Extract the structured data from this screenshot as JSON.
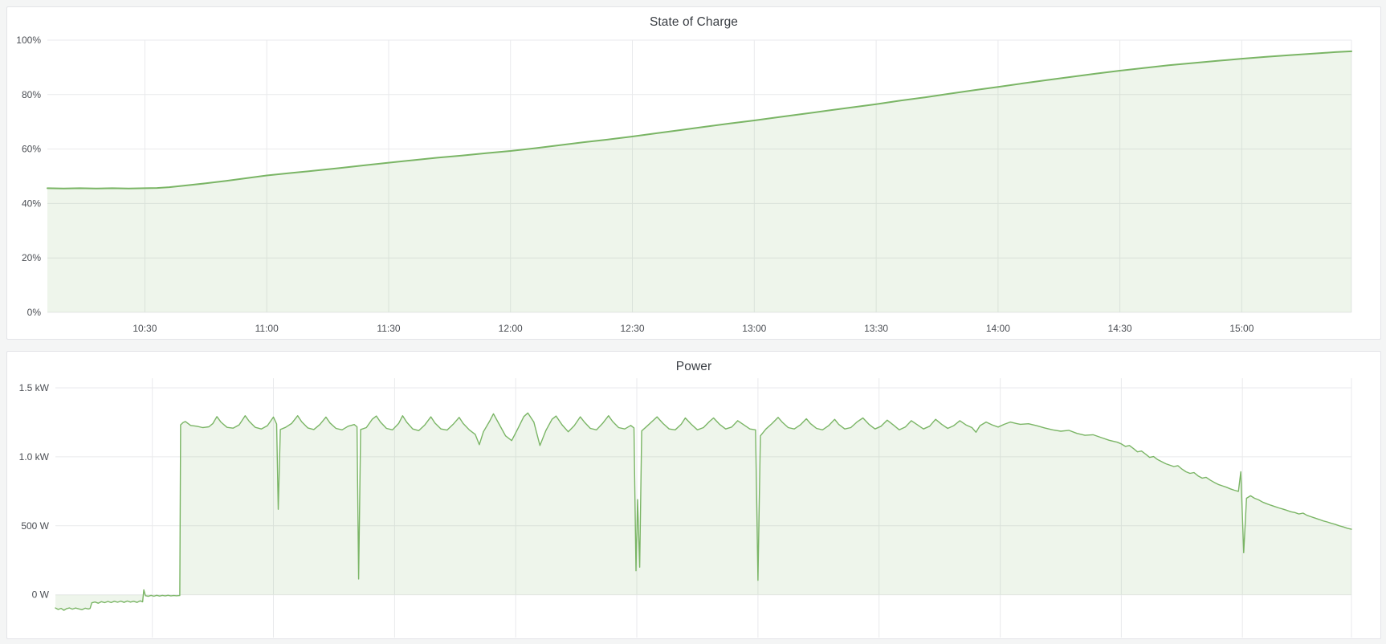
{
  "page": {
    "background": "#f4f5f5",
    "panel_background": "#ffffff",
    "panel_border": "#e3e4e8",
    "grid_color": "#e9eaec",
    "tick_text_color": "#4b4e54",
    "title_text_color": "#3a3e44"
  },
  "chart_data": [
    {
      "type": "area",
      "name": "state-of-charge",
      "title": "State of Charge",
      "unit": "percent",
      "grid": true,
      "legend": "none",
      "line_color": "#7ab565",
      "fill_color": "rgba(122,181,101,0.13)",
      "line_width": 2,
      "x_domain_minutes_after_10": [
        6,
        327
      ],
      "y_domain": [
        0,
        100
      ],
      "x_ticks": [
        {
          "min": 30,
          "label": "10:30"
        },
        {
          "min": 60,
          "label": "11:00"
        },
        {
          "min": 90,
          "label": "11:30"
        },
        {
          "min": 120,
          "label": "12:00"
        },
        {
          "min": 150,
          "label": "12:30"
        },
        {
          "min": 180,
          "label": "13:00"
        },
        {
          "min": 210,
          "label": "13:30"
        },
        {
          "min": 240,
          "label": "14:00"
        },
        {
          "min": 270,
          "label": "14:30"
        },
        {
          "min": 300,
          "label": "15:00"
        }
      ],
      "y_ticks": [
        {
          "value": 0,
          "label": "0%"
        },
        {
          "value": 20,
          "label": "20%"
        },
        {
          "value": 40,
          "label": "40%"
        },
        {
          "value": 60,
          "label": "60%"
        },
        {
          "value": 80,
          "label": "80%"
        },
        {
          "value": 100,
          "label": "100%"
        }
      ],
      "points": [
        [
          6,
          45.6
        ],
        [
          10,
          45.5
        ],
        [
          14,
          45.6
        ],
        [
          18,
          45.5
        ],
        [
          22,
          45.6
        ],
        [
          26,
          45.5
        ],
        [
          30,
          45.6
        ],
        [
          33,
          45.7
        ],
        [
          36,
          46.0
        ],
        [
          40,
          46.6
        ],
        [
          45,
          47.4
        ],
        [
          50,
          48.3
        ],
        [
          55,
          49.3
        ],
        [
          60,
          50.3
        ],
        [
          66,
          51.2
        ],
        [
          72,
          52.1
        ],
        [
          78,
          53.0
        ],
        [
          84,
          54.0
        ],
        [
          90,
          55.0
        ],
        [
          96,
          55.9
        ],
        [
          102,
          56.8
        ],
        [
          108,
          57.6
        ],
        [
          114,
          58.5
        ],
        [
          120,
          59.3
        ],
        [
          126,
          60.3
        ],
        [
          132,
          61.4
        ],
        [
          138,
          62.5
        ],
        [
          144,
          63.5
        ],
        [
          150,
          64.6
        ],
        [
          156,
          65.8
        ],
        [
          162,
          67.0
        ],
        [
          168,
          68.2
        ],
        [
          174,
          69.4
        ],
        [
          180,
          70.5
        ],
        [
          186,
          71.7
        ],
        [
          192,
          72.9
        ],
        [
          198,
          74.1
        ],
        [
          204,
          75.3
        ],
        [
          210,
          76.5
        ],
        [
          216,
          77.8
        ],
        [
          222,
          79.0
        ],
        [
          228,
          80.3
        ],
        [
          234,
          81.6
        ],
        [
          240,
          82.8
        ],
        [
          246,
          84.1
        ],
        [
          252,
          85.3
        ],
        [
          258,
          86.5
        ],
        [
          264,
          87.7
        ],
        [
          270,
          88.8
        ],
        [
          276,
          89.8
        ],
        [
          282,
          90.8
        ],
        [
          288,
          91.6
        ],
        [
          294,
          92.4
        ],
        [
          300,
          93.2
        ],
        [
          306,
          93.9
        ],
        [
          312,
          94.5
        ],
        [
          318,
          95.1
        ],
        [
          323,
          95.6
        ],
        [
          327,
          95.9
        ]
      ]
    },
    {
      "type": "area",
      "name": "power",
      "title": "Power",
      "unit": "watt",
      "grid": true,
      "legend": "none",
      "line_color": "#7ab565",
      "fill_color": "rgba(122,181,101,0.13)",
      "line_width": 1.4,
      "x_domain_minutes_after_10": [
        6,
        327
      ],
      "y_domain": [
        -310,
        1570
      ],
      "x_ticks": [
        {
          "min": 30
        },
        {
          "min": 60
        },
        {
          "min": 90
        },
        {
          "min": 120
        },
        {
          "min": 150
        },
        {
          "min": 180
        },
        {
          "min": 210
        },
        {
          "min": 240
        },
        {
          "min": 270
        },
        {
          "min": 300
        }
      ],
      "y_ticks": [
        {
          "value": 0,
          "label": "0 W"
        },
        {
          "value": 500,
          "label": "500 W"
        },
        {
          "value": 1000,
          "label": "1.0 kW"
        },
        {
          "value": 1500,
          "label": "1.5 kW"
        }
      ],
      "points": [
        [
          6,
          -95
        ],
        [
          6.7,
          -106
        ],
        [
          7.4,
          -98
        ],
        [
          8.1,
          -112
        ],
        [
          8.8,
          -100
        ],
        [
          9.5,
          -95
        ],
        [
          10.2,
          -104
        ],
        [
          11,
          -96
        ],
        [
          11.8,
          -102
        ],
        [
          12.6,
          -108
        ],
        [
          13.4,
          -97
        ],
        [
          14.2,
          -103
        ],
        [
          14.6,
          -99
        ],
        [
          15,
          -58
        ],
        [
          15.8,
          -52
        ],
        [
          16.6,
          -61
        ],
        [
          17.4,
          -50
        ],
        [
          18.2,
          -57
        ],
        [
          19,
          -48
        ],
        [
          19.8,
          -56
        ],
        [
          20.6,
          -47
        ],
        [
          21.4,
          -54
        ],
        [
          22.2,
          -46
        ],
        [
          23,
          -55
        ],
        [
          23.8,
          -45
        ],
        [
          24.6,
          -53
        ],
        [
          25.4,
          -47
        ],
        [
          26.2,
          -55
        ],
        [
          27,
          -44
        ],
        [
          27.6,
          -51
        ],
        [
          27.9,
          36
        ],
        [
          28.3,
          -6
        ],
        [
          29,
          -11
        ],
        [
          29.7,
          -4
        ],
        [
          30.4,
          -10
        ],
        [
          31.1,
          -3
        ],
        [
          31.8,
          -9
        ],
        [
          32.5,
          -4
        ],
        [
          33.2,
          -8
        ],
        [
          33.9,
          -3
        ],
        [
          34.6,
          -8
        ],
        [
          35.3,
          -5
        ],
        [
          36,
          -7
        ],
        [
          36.8,
          -5
        ],
        [
          37,
          1232
        ],
        [
          37.6,
          1248
        ],
        [
          38.2,
          1256
        ],
        [
          39.5,
          1228
        ],
        [
          41,
          1222
        ],
        [
          42.5,
          1212
        ],
        [
          44,
          1218
        ],
        [
          45,
          1242
        ],
        [
          46,
          1292
        ],
        [
          47,
          1252
        ],
        [
          48.5,
          1214
        ],
        [
          50,
          1208
        ],
        [
          51.5,
          1232
        ],
        [
          53,
          1298
        ],
        [
          54,
          1258
        ],
        [
          55.5,
          1214
        ],
        [
          57,
          1202
        ],
        [
          58.5,
          1226
        ],
        [
          60,
          1288
        ],
        [
          60.8,
          1238
        ],
        [
          61.2,
          620
        ],
        [
          61.7,
          1198
        ],
        [
          63,
          1214
        ],
        [
          64.5,
          1242
        ],
        [
          66,
          1298
        ],
        [
          67,
          1254
        ],
        [
          68.5,
          1210
        ],
        [
          70,
          1198
        ],
        [
          71.5,
          1234
        ],
        [
          73,
          1288
        ],
        [
          74,
          1246
        ],
        [
          75.5,
          1206
        ],
        [
          77,
          1196
        ],
        [
          78.5,
          1222
        ],
        [
          80,
          1234
        ],
        [
          80.7,
          1218
        ],
        [
          81.1,
          115
        ],
        [
          81.6,
          1198
        ],
        [
          83,
          1212
        ],
        [
          84.5,
          1274
        ],
        [
          85.5,
          1296
        ],
        [
          86.5,
          1252
        ],
        [
          88,
          1206
        ],
        [
          89.5,
          1196
        ],
        [
          91,
          1242
        ],
        [
          92,
          1298
        ],
        [
          93,
          1252
        ],
        [
          94.5,
          1202
        ],
        [
          96,
          1190
        ],
        [
          97.5,
          1232
        ],
        [
          99,
          1290
        ],
        [
          100,
          1246
        ],
        [
          101.5,
          1202
        ],
        [
          103,
          1194
        ],
        [
          104.5,
          1236
        ],
        [
          106,
          1286
        ],
        [
          107,
          1242
        ],
        [
          108.5,
          1196
        ],
        [
          110,
          1162
        ],
        [
          111,
          1088
        ],
        [
          112,
          1182
        ],
        [
          113.5,
          1256
        ],
        [
          114.5,
          1312
        ],
        [
          116,
          1232
        ],
        [
          117.5,
          1152
        ],
        [
          119,
          1118
        ],
        [
          120.5,
          1202
        ],
        [
          122,
          1292
        ],
        [
          123,
          1318
        ],
        [
          124.5,
          1252
        ],
        [
          126,
          1082
        ],
        [
          127.5,
          1192
        ],
        [
          129,
          1272
        ],
        [
          130,
          1296
        ],
        [
          131.5,
          1232
        ],
        [
          133,
          1182
        ],
        [
          134.5,
          1226
        ],
        [
          136,
          1290
        ],
        [
          137,
          1252
        ],
        [
          138.5,
          1206
        ],
        [
          140,
          1196
        ],
        [
          141.5,
          1242
        ],
        [
          143,
          1298
        ],
        [
          144,
          1256
        ],
        [
          145.5,
          1212
        ],
        [
          147,
          1202
        ],
        [
          148.5,
          1228
        ],
        [
          149.3,
          1210
        ],
        [
          149.8,
          175
        ],
        [
          150.2,
          690
        ],
        [
          150.7,
          200
        ],
        [
          151.2,
          1188
        ],
        [
          152.5,
          1222
        ],
        [
          154,
          1262
        ],
        [
          155,
          1290
        ],
        [
          156.5,
          1242
        ],
        [
          158,
          1202
        ],
        [
          159.5,
          1196
        ],
        [
          161,
          1236
        ],
        [
          162,
          1282
        ],
        [
          163.5,
          1236
        ],
        [
          165,
          1196
        ],
        [
          166.5,
          1212
        ],
        [
          168,
          1256
        ],
        [
          169,
          1282
        ],
        [
          170.5,
          1236
        ],
        [
          172,
          1202
        ],
        [
          173.5,
          1216
        ],
        [
          175,
          1262
        ],
        [
          176.5,
          1232
        ],
        [
          178,
          1202
        ],
        [
          179.4,
          1196
        ],
        [
          180,
          105
        ],
        [
          180.6,
          1152
        ],
        [
          182,
          1202
        ],
        [
          183.5,
          1242
        ],
        [
          185,
          1286
        ],
        [
          186,
          1252
        ],
        [
          187.5,
          1212
        ],
        [
          189,
          1202
        ],
        [
          190.5,
          1232
        ],
        [
          192,
          1276
        ],
        [
          193,
          1242
        ],
        [
          194.5,
          1206
        ],
        [
          196,
          1196
        ],
        [
          197.5,
          1226
        ],
        [
          199,
          1272
        ],
        [
          200,
          1236
        ],
        [
          201.5,
          1202
        ],
        [
          203,
          1212
        ],
        [
          204.5,
          1252
        ],
        [
          206,
          1282
        ],
        [
          207.5,
          1236
        ],
        [
          209,
          1202
        ],
        [
          210.5,
          1222
        ],
        [
          212,
          1266
        ],
        [
          213.5,
          1232
        ],
        [
          215,
          1196
        ],
        [
          216.5,
          1216
        ],
        [
          218,
          1262
        ],
        [
          219.5,
          1232
        ],
        [
          221,
          1202
        ],
        [
          222.5,
          1222
        ],
        [
          224,
          1272
        ],
        [
          225.5,
          1236
        ],
        [
          227,
          1206
        ],
        [
          228.5,
          1226
        ],
        [
          230,
          1262
        ],
        [
          231.5,
          1232
        ],
        [
          233,
          1212
        ],
        [
          234,
          1178
        ],
        [
          235,
          1226
        ],
        [
          236.5,
          1252
        ],
        [
          238,
          1232
        ],
        [
          239.5,
          1216
        ],
        [
          241,
          1236
        ],
        [
          242.5,
          1252
        ],
        [
          244,
          1242
        ],
        [
          245,
          1236
        ],
        [
          247,
          1240
        ],
        [
          249,
          1226
        ],
        [
          251,
          1210
        ],
        [
          253,
          1196
        ],
        [
          255,
          1186
        ],
        [
          257,
          1192
        ],
        [
          259,
          1170
        ],
        [
          261,
          1156
        ],
        [
          263,
          1160
        ],
        [
          265,
          1140
        ],
        [
          267,
          1120
        ],
        [
          269,
          1106
        ],
        [
          270,
          1094
        ],
        [
          271,
          1076
        ],
        [
          272,
          1082
        ],
        [
          273,
          1060
        ],
        [
          274,
          1036
        ],
        [
          275,
          1042
        ],
        [
          276,
          1020
        ],
        [
          277,
          996
        ],
        [
          278,
          1002
        ],
        [
          279,
          980
        ],
        [
          281,
          950
        ],
        [
          283,
          930
        ],
        [
          284,
          936
        ],
        [
          285,
          912
        ],
        [
          286,
          892
        ],
        [
          287,
          880
        ],
        [
          288,
          886
        ],
        [
          289,
          862
        ],
        [
          290,
          846
        ],
        [
          291,
          852
        ],
        [
          292,
          832
        ],
        [
          293,
          815
        ],
        [
          294,
          800
        ],
        [
          295,
          790
        ],
        [
          296,
          780
        ],
        [
          297,
          768
        ],
        [
          298,
          758
        ],
        [
          299,
          750
        ],
        [
          299.6,
          892
        ],
        [
          300.3,
          305
        ],
        [
          301,
          700
        ],
        [
          302,
          718
        ],
        [
          303,
          700
        ],
        [
          304,
          688
        ],
        [
          305,
          672
        ],
        [
          306,
          660
        ],
        [
          307,
          650
        ],
        [
          308,
          640
        ],
        [
          309,
          630
        ],
        [
          310,
          622
        ],
        [
          311,
          612
        ],
        [
          312,
          602
        ],
        [
          313,
          596
        ],
        [
          314,
          586
        ],
        [
          315,
          592
        ],
        [
          316,
          576
        ],
        [
          317,
          566
        ],
        [
          318,
          556
        ],
        [
          319,
          546
        ],
        [
          320,
          536
        ],
        [
          321,
          528
        ],
        [
          322,
          518
        ],
        [
          323,
          510
        ],
        [
          324,
          500
        ],
        [
          325,
          492
        ],
        [
          326,
          482
        ],
        [
          327,
          475
        ]
      ]
    }
  ]
}
